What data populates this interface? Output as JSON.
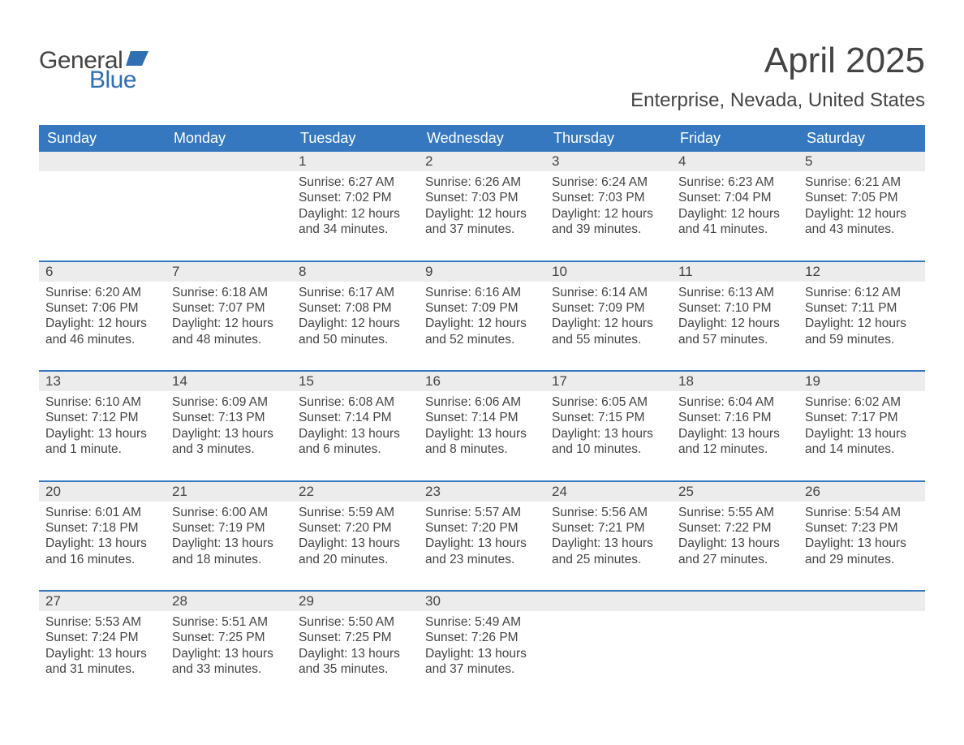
{
  "logo": {
    "text1": "General",
    "text2": "Blue",
    "flag_color": "#2f6fb2"
  },
  "title": "April 2025",
  "location": "Enterprise, Nevada, United States",
  "day_headers": [
    "Sunday",
    "Monday",
    "Tuesday",
    "Wednesday",
    "Thursday",
    "Friday",
    "Saturday"
  ],
  "colors": {
    "header_bg": "#3578bf",
    "header_text": "#ffffff",
    "daynum_bg": "#ececec",
    "rule": "#3578bf",
    "text": "#444444",
    "background": "#ffffff"
  },
  "weeks": [
    [
      null,
      null,
      {
        "n": "1",
        "sunrise": "6:27 AM",
        "sunset": "7:02 PM",
        "daylight": "12 hours and 34 minutes."
      },
      {
        "n": "2",
        "sunrise": "6:26 AM",
        "sunset": "7:03 PM",
        "daylight": "12 hours and 37 minutes."
      },
      {
        "n": "3",
        "sunrise": "6:24 AM",
        "sunset": "7:03 PM",
        "daylight": "12 hours and 39 minutes."
      },
      {
        "n": "4",
        "sunrise": "6:23 AM",
        "sunset": "7:04 PM",
        "daylight": "12 hours and 41 minutes."
      },
      {
        "n": "5",
        "sunrise": "6:21 AM",
        "sunset": "7:05 PM",
        "daylight": "12 hours and 43 minutes."
      }
    ],
    [
      {
        "n": "6",
        "sunrise": "6:20 AM",
        "sunset": "7:06 PM",
        "daylight": "12 hours and 46 minutes."
      },
      {
        "n": "7",
        "sunrise": "6:18 AM",
        "sunset": "7:07 PM",
        "daylight": "12 hours and 48 minutes."
      },
      {
        "n": "8",
        "sunrise": "6:17 AM",
        "sunset": "7:08 PM",
        "daylight": "12 hours and 50 minutes."
      },
      {
        "n": "9",
        "sunrise": "6:16 AM",
        "sunset": "7:09 PM",
        "daylight": "12 hours and 52 minutes."
      },
      {
        "n": "10",
        "sunrise": "6:14 AM",
        "sunset": "7:09 PM",
        "daylight": "12 hours and 55 minutes."
      },
      {
        "n": "11",
        "sunrise": "6:13 AM",
        "sunset": "7:10 PM",
        "daylight": "12 hours and 57 minutes."
      },
      {
        "n": "12",
        "sunrise": "6:12 AM",
        "sunset": "7:11 PM",
        "daylight": "12 hours and 59 minutes."
      }
    ],
    [
      {
        "n": "13",
        "sunrise": "6:10 AM",
        "sunset": "7:12 PM",
        "daylight": "13 hours and 1 minute."
      },
      {
        "n": "14",
        "sunrise": "6:09 AM",
        "sunset": "7:13 PM",
        "daylight": "13 hours and 3 minutes."
      },
      {
        "n": "15",
        "sunrise": "6:08 AM",
        "sunset": "7:14 PM",
        "daylight": "13 hours and 6 minutes."
      },
      {
        "n": "16",
        "sunrise": "6:06 AM",
        "sunset": "7:14 PM",
        "daylight": "13 hours and 8 minutes."
      },
      {
        "n": "17",
        "sunrise": "6:05 AM",
        "sunset": "7:15 PM",
        "daylight": "13 hours and 10 minutes."
      },
      {
        "n": "18",
        "sunrise": "6:04 AM",
        "sunset": "7:16 PM",
        "daylight": "13 hours and 12 minutes."
      },
      {
        "n": "19",
        "sunrise": "6:02 AM",
        "sunset": "7:17 PM",
        "daylight": "13 hours and 14 minutes."
      }
    ],
    [
      {
        "n": "20",
        "sunrise": "6:01 AM",
        "sunset": "7:18 PM",
        "daylight": "13 hours and 16 minutes."
      },
      {
        "n": "21",
        "sunrise": "6:00 AM",
        "sunset": "7:19 PM",
        "daylight": "13 hours and 18 minutes."
      },
      {
        "n": "22",
        "sunrise": "5:59 AM",
        "sunset": "7:20 PM",
        "daylight": "13 hours and 20 minutes."
      },
      {
        "n": "23",
        "sunrise": "5:57 AM",
        "sunset": "7:20 PM",
        "daylight": "13 hours and 23 minutes."
      },
      {
        "n": "24",
        "sunrise": "5:56 AM",
        "sunset": "7:21 PM",
        "daylight": "13 hours and 25 minutes."
      },
      {
        "n": "25",
        "sunrise": "5:55 AM",
        "sunset": "7:22 PM",
        "daylight": "13 hours and 27 minutes."
      },
      {
        "n": "26",
        "sunrise": "5:54 AM",
        "sunset": "7:23 PM",
        "daylight": "13 hours and 29 minutes."
      }
    ],
    [
      {
        "n": "27",
        "sunrise": "5:53 AM",
        "sunset": "7:24 PM",
        "daylight": "13 hours and 31 minutes."
      },
      {
        "n": "28",
        "sunrise": "5:51 AM",
        "sunset": "7:25 PM",
        "daylight": "13 hours and 33 minutes."
      },
      {
        "n": "29",
        "sunrise": "5:50 AM",
        "sunset": "7:25 PM",
        "daylight": "13 hours and 35 minutes."
      },
      {
        "n": "30",
        "sunrise": "5:49 AM",
        "sunset": "7:26 PM",
        "daylight": "13 hours and 37 minutes."
      },
      null,
      null,
      null
    ]
  ],
  "labels": {
    "sunrise": "Sunrise: ",
    "sunset": "Sunset: ",
    "daylight": "Daylight: "
  }
}
